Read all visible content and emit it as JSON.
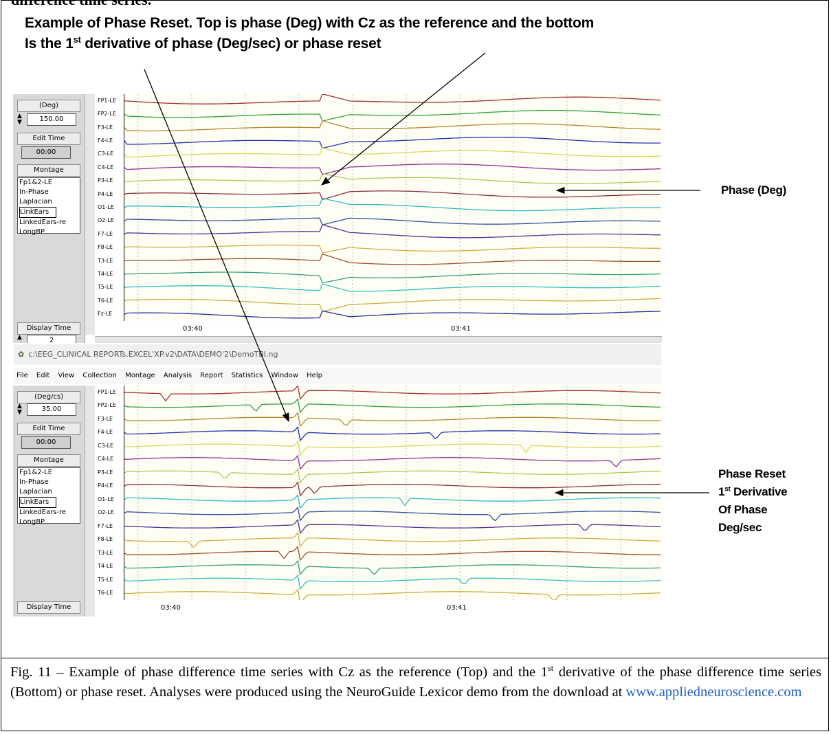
{
  "figure": {
    "cut_heading": "difference time series.",
    "headline_line1": "Example of Phase Reset.  Top is phase (Deg) with Cz as the reference and the bottom",
    "headline_line2_pre": "Is the 1",
    "headline_line2_sup": "st",
    "headline_line2_post": " derivative of phase (Deg/sec) or phase reset",
    "label_top": "Phase (Deg)",
    "label_bottom_1": "Phase Reset",
    "label_bottom_2_pre": "1",
    "label_bottom_2_sup": "st",
    "label_bottom_2_post": " Derivative",
    "label_bottom_3": "Of Phase",
    "label_bottom_4": "Deg/sec"
  },
  "caption": {
    "part1": "Fig. 11 – Example of phase difference time series with Cz as the reference (Top) and the 1",
    "sup": "st",
    "part2": " derivative of the phase difference time series (Bottom) or phase reset.  Analyses were produced using the NeuroGuide Lexicor demo from the download at ",
    "link": "www.appliedneuroscience.com"
  },
  "top_panel": {
    "unit_button": "(Deg)",
    "scale_value": "150.00",
    "edit_time_button": "Edit Time",
    "edit_time_value": "00:00",
    "montage_button": "Montage",
    "montage_options": [
      "Fp1&2-LE",
      "In-Phase",
      "Laplacian",
      "LinkEars",
      "LinkedEars-re",
      "LongBP"
    ],
    "display_time_button": "Display Time",
    "display_time_value": "2",
    "channels": [
      "FP1-LE",
      "FP2-LE",
      "F3-LE",
      "F4-LE",
      "C3-LE",
      "C4-LE",
      "P3-LE",
      "P4-LE",
      "O1-LE",
      "O2-LE",
      "F7-LE",
      "F8-LE",
      "T3-LE",
      "T4-LE",
      "T5-LE",
      "T6-LE",
      "Fz-LE"
    ],
    "time_ticks": [
      "03:40",
      "03:41"
    ]
  },
  "window": {
    "title": "c:\\EEG_CLINICAL REPORTs.EXCEL'XP.v2\\DATA\\DEMO'2\\DemoTBI.ng",
    "menu": [
      "File",
      "Edit",
      "View",
      "Collection",
      "Montage",
      "Analysis",
      "Report",
      "Statistics",
      "Window",
      "Help"
    ]
  },
  "bottom_panel": {
    "unit_button": "(Deg/cs)",
    "scale_value": "35.00",
    "edit_time_button": "Edit Time",
    "edit_time_value": "00:00",
    "montage_button": "Montage",
    "montage_options": [
      "Fp1&2-LE",
      "In-Phase",
      "Laplacian",
      "LinkEars",
      "LinkedEars-re",
      "LongBP"
    ],
    "display_time_button": "Display Time",
    "channels": [
      "FP1-LE",
      "FP2-LE",
      "F3-LE",
      "F4-LE",
      "C3-LE",
      "C4-LE",
      "P3-LE",
      "P4-LE",
      "O1-LE",
      "O2-LE",
      "F7-LE",
      "F8-LE",
      "T3-LE",
      "T4-LE",
      "T5-LE",
      "T6-LE"
    ],
    "time_ticks": [
      "03:40",
      "03:41"
    ]
  },
  "trace_colors": [
    "#a03030",
    "#30a040",
    "#b08a30",
    "#2030b0",
    "#d8d860",
    "#9030a0",
    "#b0c850",
    "#903040",
    "#30b8c8",
    "#3050a0",
    "#5030a0",
    "#d0b040",
    "#a05030",
    "#30a080",
    "#30c0c0",
    "#c8b040",
    "#2030a0"
  ]
}
